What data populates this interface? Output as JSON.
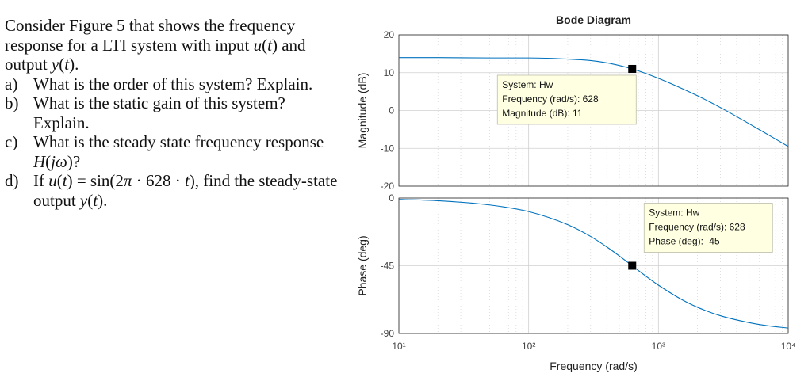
{
  "question": {
    "intro_parts": [
      "Consider Figure 5 that shows the frequency response for a LTI system with input ",
      "u",
      "(",
      "t",
      ") and output ",
      "y",
      "(",
      "t",
      ")."
    ],
    "items": [
      {
        "marker": "a)",
        "parts": [
          "What is the order of this system? Explain."
        ]
      },
      {
        "marker": "b)",
        "parts": [
          "What is the static gain of this system? Explain."
        ]
      },
      {
        "marker": "c)",
        "parts": [
          "What is the steady state frequency response ",
          "H",
          "(",
          "jω",
          ")?"
        ]
      },
      {
        "marker": "d)",
        "parts": [
          "If ",
          "u",
          "(",
          "t",
          ") = sin(2",
          "π",
          " · 628 · ",
          "t",
          "), find the steady-state output ",
          "y",
          "(",
          "t",
          ")."
        ]
      }
    ]
  },
  "chart_data": {
    "type": "line",
    "title": "Bode Diagram",
    "xlabel": "Frequency  (rad/s)",
    "x_scale": "log",
    "xlim": [
      10,
      10000
    ],
    "x_tick_labels": [
      "10¹",
      "10²",
      "10³",
      "10⁴"
    ],
    "x_tick_values": [
      10,
      100,
      1000,
      10000
    ],
    "grid": true,
    "line_color": "#0072bd",
    "panels": [
      {
        "name": "magnitude",
        "ylabel": "Magnitude (dB)",
        "ylim": [
          -20,
          20
        ],
        "y_ticks": [
          20,
          10,
          0,
          -10,
          -20
        ],
        "series": {
          "x": [
            10,
            20,
            50,
            100,
            200,
            300,
            400,
            500,
            628,
            800,
            1000,
            1500,
            2000,
            3000,
            5000,
            7000,
            10000
          ],
          "y": [
            14,
            14,
            13.9,
            13.9,
            13.6,
            13.2,
            12.6,
            11.9,
            11,
            9.8,
            8.5,
            5.9,
            3.9,
            0.8,
            -3.5,
            -6.4,
            -9.5
          ]
        },
        "datatip": {
          "x": 628,
          "y": 11,
          "lines": [
            "System: Hw",
            "Frequency (rad/s): 628",
            "Magnitude (dB): 11"
          ]
        }
      },
      {
        "name": "phase",
        "ylabel": "Phase (deg)",
        "ylim": [
          -90,
          0
        ],
        "y_ticks": [
          0,
          -45,
          -90
        ],
        "series": {
          "x": [
            10,
            20,
            50,
            100,
            200,
            300,
            400,
            500,
            628,
            800,
            1000,
            1500,
            2000,
            3000,
            5000,
            7000,
            10000
          ],
          "y": [
            -0.9,
            -1.8,
            -4.6,
            -9.0,
            -17.7,
            -25.5,
            -32.5,
            -38.5,
            -45,
            -51.9,
            -57.9,
            -67.3,
            -72.6,
            -78.2,
            -82.8,
            -84.9,
            -86.4
          ]
        },
        "datatip": {
          "x": 628,
          "y": -45,
          "lines": [
            "System: Hw",
            "Frequency (rad/s): 628",
            "Phase (deg): -45"
          ]
        }
      }
    ]
  }
}
